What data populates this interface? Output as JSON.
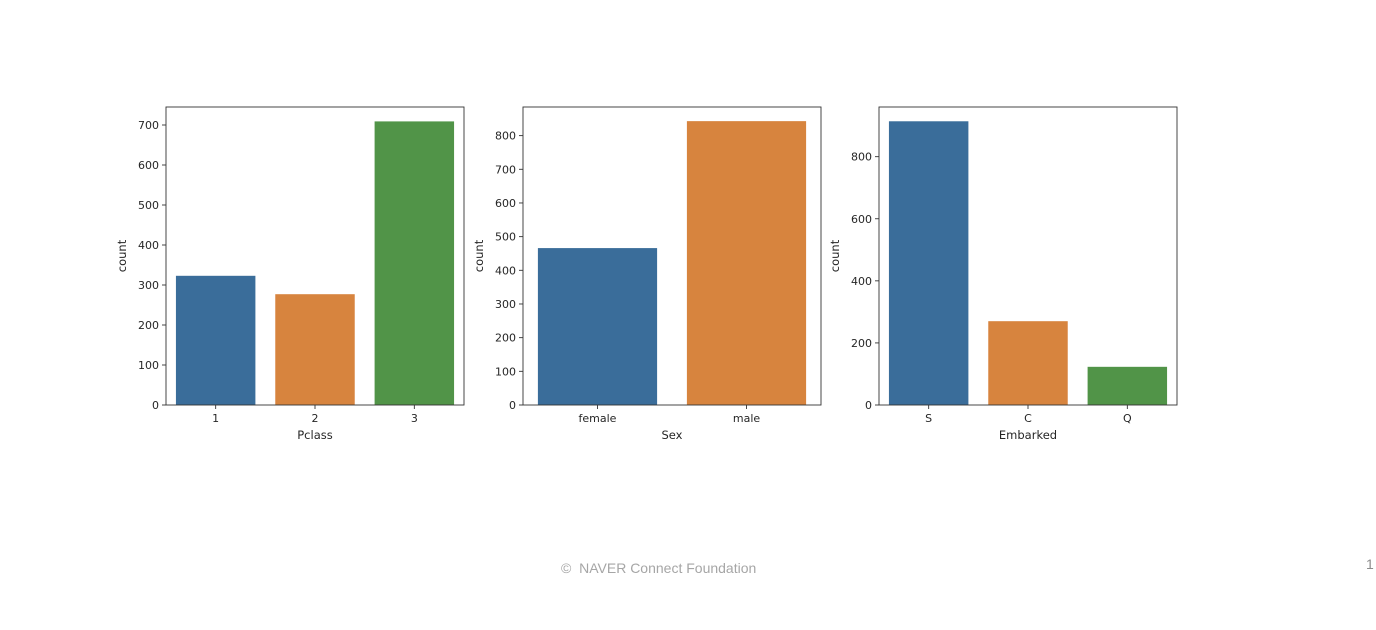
{
  "footer": {
    "copyright_symbol": "©",
    "text": "NAVER Connect Foundation"
  },
  "page_number": "1",
  "chart_data": [
    {
      "type": "bar",
      "categories": [
        "1",
        "2",
        "3"
      ],
      "values": [
        323,
        277,
        709
      ],
      "xlabel": "Pclass",
      "ylabel": "count",
      "ylim": [
        0,
        745
      ],
      "yticks": [
        0,
        100,
        200,
        300,
        400,
        500,
        600,
        700
      ],
      "colors": [
        "#3a6d9a",
        "#d7843e",
        "#519448"
      ],
      "grid": false,
      "legend": "none"
    },
    {
      "type": "bar",
      "categories": [
        "female",
        "male"
      ],
      "values": [
        466,
        843
      ],
      "xlabel": "Sex",
      "ylabel": "count",
      "ylim": [
        0,
        885
      ],
      "yticks": [
        0,
        100,
        200,
        300,
        400,
        500,
        600,
        700,
        800
      ],
      "colors": [
        "#3a6d9a",
        "#d7843e"
      ],
      "grid": false,
      "legend": "none"
    },
    {
      "type": "bar",
      "categories": [
        "S",
        "C",
        "Q"
      ],
      "values": [
        914,
        270,
        123
      ],
      "xlabel": "Embarked",
      "ylabel": "count",
      "ylim": [
        0,
        960
      ],
      "yticks": [
        0,
        200,
        400,
        600,
        800
      ],
      "colors": [
        "#3a6d9a",
        "#d7843e",
        "#519448"
      ],
      "grid": false,
      "legend": "none"
    }
  ]
}
